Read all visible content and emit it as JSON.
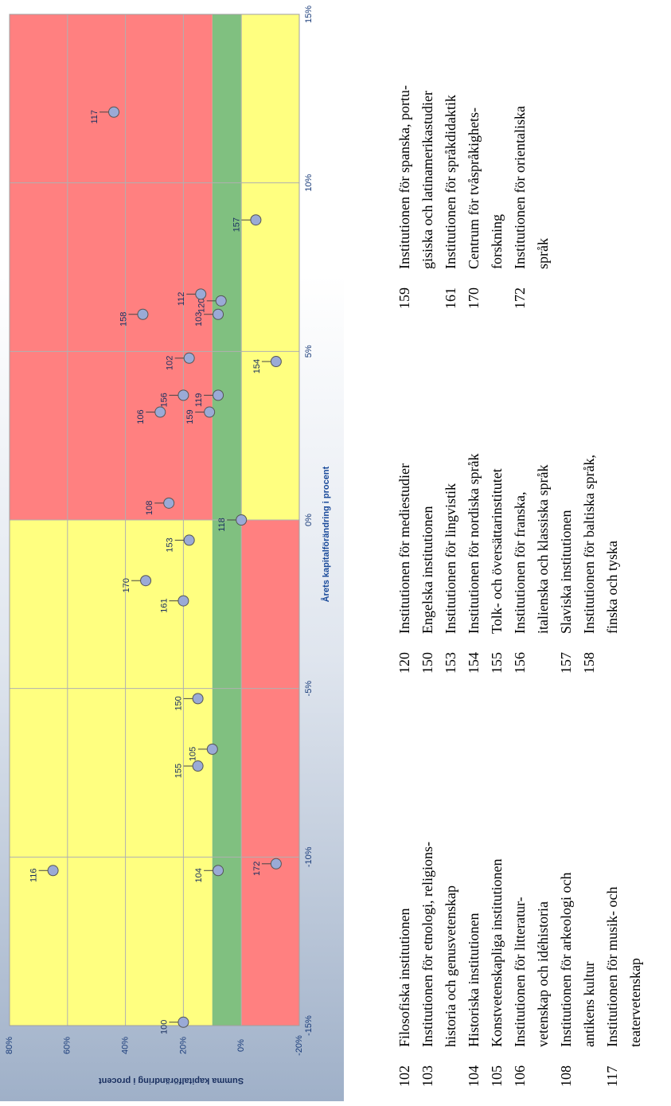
{
  "chart_data": {
    "type": "scatter",
    "xlabel": "Årets kapitalförändring i procent",
    "ylabel": "Summa kapitalförändring i procent",
    "xlim": [
      -15,
      15
    ],
    "ylim": [
      -20,
      80
    ],
    "xticks": [
      "-15%",
      "-10%",
      "-5%",
      "0%",
      "5%",
      "10%",
      "15%"
    ],
    "xtick_values": [
      -15,
      -10,
      -5,
      0,
      5,
      10,
      15
    ],
    "yticks": [
      "-20%",
      "0%",
      "20%",
      "40%",
      "60%",
      "80%"
    ],
    "ytick_values": [
      -20,
      0,
      20,
      40,
      60,
      80
    ],
    "grid": true,
    "marker_color": "#9aaad6",
    "bands": [
      {
        "x": [
          -15,
          0
        ],
        "y": [
          10,
          80
        ],
        "color": "#ffff80"
      },
      {
        "x": [
          0,
          15
        ],
        "y": [
          10,
          80
        ],
        "color": "#ff8080"
      },
      {
        "x": [
          -15,
          15
        ],
        "y": [
          0,
          10
        ],
        "color": "#80c080"
      },
      {
        "x": [
          -15,
          0
        ],
        "y": [
          -20,
          0
        ],
        "color": "#ff8080"
      },
      {
        "x": [
          0,
          15
        ],
        "y": [
          -20,
          0
        ],
        "color": "#ffff80"
      }
    ],
    "points": [
      {
        "label": "100",
        "x": -14.9,
        "y": 20
      },
      {
        "label": "116",
        "x": -10.4,
        "y": 65
      },
      {
        "label": "104",
        "x": -10.4,
        "y": 8
      },
      {
        "label": "172",
        "x": -10.2,
        "y": -12
      },
      {
        "label": "155",
        "x": -7.3,
        "y": 15
      },
      {
        "label": "105",
        "x": -6.8,
        "y": 10
      },
      {
        "label": "150",
        "x": -5.3,
        "y": 15
      },
      {
        "label": "161",
        "x": -2.4,
        "y": 20
      },
      {
        "label": "170",
        "x": -1.8,
        "y": 33
      },
      {
        "label": "153",
        "x": -0.6,
        "y": 18
      },
      {
        "label": "118",
        "x": 0.0,
        "y": 0
      },
      {
        "label": "108",
        "x": 0.5,
        "y": 25
      },
      {
        "label": "106",
        "x": 3.2,
        "y": 28
      },
      {
        "label": "159",
        "x": 3.2,
        "y": 11
      },
      {
        "label": "156",
        "x": 3.7,
        "y": 20
      },
      {
        "label": "119",
        "x": 3.7,
        "y": 8
      },
      {
        "label": "154",
        "x": 4.7,
        "y": -12
      },
      {
        "label": "102",
        "x": 4.8,
        "y": 18
      },
      {
        "label": "158",
        "x": 6.1,
        "y": 34
      },
      {
        "label": "103",
        "x": 6.1,
        "y": 8
      },
      {
        "label": "120",
        "x": 6.5,
        "y": 7
      },
      {
        "label": "112",
        "x": 6.7,
        "y": 14
      },
      {
        "label": "157",
        "x": 8.9,
        "y": -5
      },
      {
        "label": "117",
        "x": 12.1,
        "y": 44
      }
    ]
  },
  "legend": [
    {
      "num": "102",
      "lines": [
        "Filosofiska institutionen"
      ]
    },
    {
      "num": "103",
      "lines": [
        "Institutionen för etnologi, religions-",
        "historia och genusvetenskap"
      ]
    },
    {
      "num": "104",
      "lines": [
        "Historiska institutionen"
      ]
    },
    {
      "num": "105",
      "lines": [
        "Konstvetenskapliga institutionen"
      ]
    },
    {
      "num": "106",
      "lines": [
        "Institutionen för litteratur-",
        "vetenskap och idéhistoria"
      ]
    },
    {
      "num": "108",
      "lines": [
        "Institutionen för arkeologi och",
        "antikens kultur"
      ]
    },
    {
      "num": "117",
      "lines": [
        "Institutionen för musik- och",
        "teatervetenskap"
      ]
    },
    {
      "num": "120",
      "lines": [
        "Institutionen för mediestudier"
      ]
    },
    {
      "num": "150",
      "lines": [
        "Engelska institutionen"
      ]
    },
    {
      "num": "153",
      "lines": [
        "Institutionen för lingvistik"
      ]
    },
    {
      "num": "154",
      "lines": [
        "Institutionen för nordiska språk"
      ]
    },
    {
      "num": "155",
      "lines": [
        "Tolk- och översättarinstitutet"
      ]
    },
    {
      "num": "156",
      "lines": [
        "Institutionen för franska,",
        "italienska och klassiska språk"
      ]
    },
    {
      "num": "157",
      "lines": [
        "Slaviska institutionen"
      ]
    },
    {
      "num": "158",
      "lines": [
        "Institutionen för baltiska språk,",
        "finska och tyska"
      ]
    },
    {
      "num": "159",
      "lines": [
        "Institutionen för spanska, portu-",
        "gisiska och latinamerikastudier"
      ]
    },
    {
      "num": "161",
      "lines": [
        "Institutionen för språkdidaktik"
      ]
    },
    {
      "num": "170",
      "lines": [
        "Centrum för tvåspråkighets-",
        "forskning"
      ]
    },
    {
      "num": "172",
      "lines": [
        "Institutionen för orientaliska",
        "språk"
      ]
    }
  ]
}
